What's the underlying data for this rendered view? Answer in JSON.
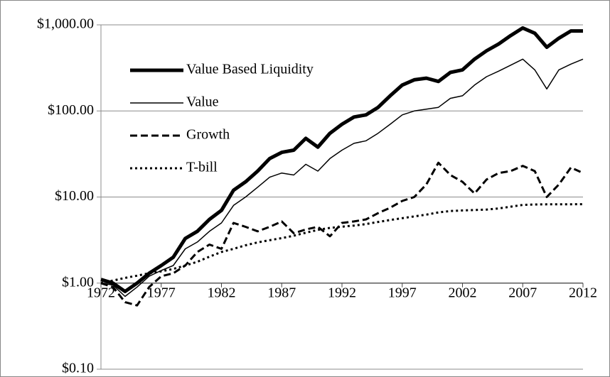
{
  "chart_data": {
    "type": "line",
    "log_y": true,
    "grid": true,
    "legend": "upper left",
    "xlim": [
      1972,
      2012
    ],
    "ylim": [
      0.1,
      1000
    ],
    "x_axis_crosses": 1,
    "xticks": [
      1972,
      1977,
      1982,
      1987,
      1992,
      1997,
      2002,
      2007,
      2012
    ],
    "yticks": [
      {
        "value": 0.1,
        "label": "$0.10"
      },
      {
        "value": 1,
        "label": "$1.00"
      },
      {
        "value": 10,
        "label": "$10.00"
      },
      {
        "value": 100,
        "label": "$100.00"
      },
      {
        "value": 1000,
        "label": "$1,000.00"
      }
    ],
    "x": [
      1972,
      1973,
      1974,
      1975,
      1976,
      1977,
      1978,
      1979,
      1980,
      1981,
      1982,
      1983,
      1984,
      1985,
      1986,
      1987,
      1988,
      1989,
      1990,
      1991,
      1992,
      1993,
      1994,
      1995,
      1996,
      1997,
      1998,
      1999,
      2000,
      2001,
      2002,
      2003,
      2004,
      2005,
      2006,
      2007,
      2008,
      2009,
      2010,
      2011,
      2012
    ],
    "series": [
      {
        "name": "Value Based Liquidity",
        "color": "#000000",
        "dash": "solid",
        "linewidth": 5,
        "values": [
          1.1,
          1.0,
          0.8,
          1.0,
          1.3,
          1.6,
          2.0,
          3.3,
          4.0,
          5.5,
          7,
          12,
          15,
          20,
          28,
          33,
          35,
          48,
          38,
          55,
          70,
          85,
          90,
          110,
          150,
          200,
          230,
          240,
          220,
          280,
          300,
          400,
          500,
          600,
          750,
          920,
          800,
          550,
          700,
          850,
          850
        ]
      },
      {
        "name": "Value",
        "color": "#000000",
        "dash": "solid",
        "linewidth": 1.5,
        "values": [
          1.0,
          0.95,
          0.7,
          0.9,
          1.2,
          1.4,
          1.6,
          2.5,
          3,
          4,
          5,
          8,
          10,
          13,
          17,
          19,
          18,
          24,
          20,
          28,
          35,
          42,
          45,
          55,
          70,
          90,
          100,
          105,
          110,
          140,
          150,
          200,
          250,
          290,
          340,
          400,
          300,
          180,
          300,
          350,
          400
        ]
      },
      {
        "name": "Growth",
        "color": "#000000",
        "dash": "dashed",
        "linewidth": 3,
        "values": [
          1.0,
          0.9,
          0.6,
          0.55,
          0.9,
          1.2,
          1.3,
          1.6,
          2.3,
          2.8,
          2.5,
          5,
          4.5,
          4,
          4.5,
          5.2,
          3.8,
          4.2,
          4.5,
          3.5,
          5,
          5.2,
          5.5,
          6.5,
          7.5,
          9,
          10,
          14,
          25,
          18,
          15,
          11,
          16,
          19,
          20,
          23,
          20,
          10,
          14,
          22,
          19
        ]
      },
      {
        "name": "T-bill",
        "color": "#000000",
        "dash": "dotted",
        "linewidth": 3,
        "values": [
          1.0,
          1.07,
          1.15,
          1.22,
          1.3,
          1.37,
          1.46,
          1.6,
          1.77,
          2.03,
          2.3,
          2.5,
          2.75,
          2.97,
          3.15,
          3.33,
          3.55,
          3.85,
          4.15,
          4.38,
          4.52,
          4.66,
          4.85,
          5.13,
          5.4,
          5.68,
          5.96,
          6.24,
          6.62,
          6.88,
          6.99,
          7.06,
          7.15,
          7.37,
          7.72,
          8.1,
          8.2,
          8.22,
          8.23,
          8.24,
          8.25
        ]
      }
    ]
  }
}
